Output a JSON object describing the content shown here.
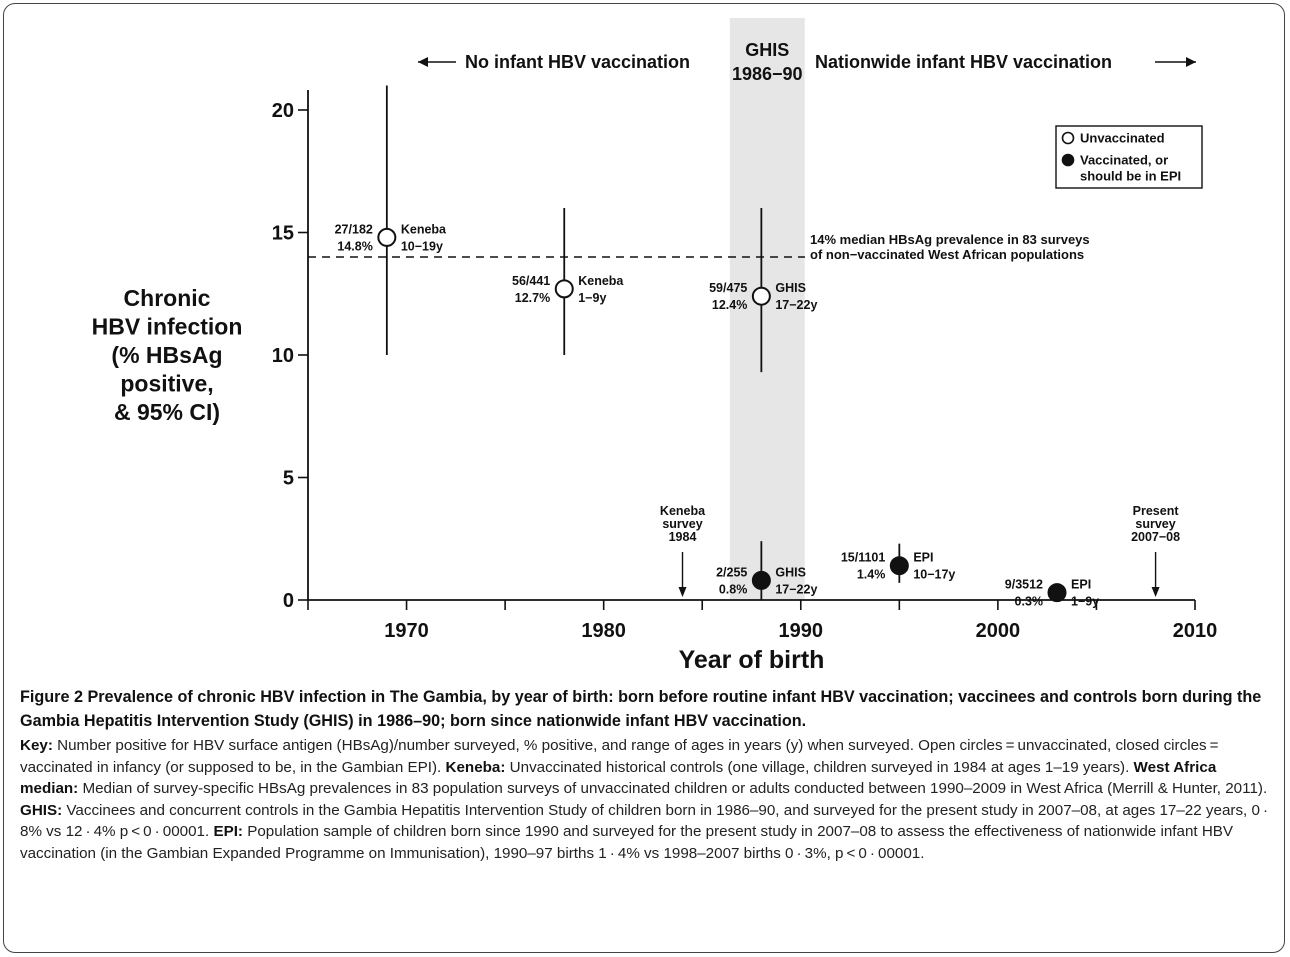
{
  "chart_data": {
    "type": "scatter",
    "xlabel": "Year of birth",
    "ylabel_lines": [
      "Chronic",
      "HBV infection",
      "(% HBsAg",
      "positive,",
      "& 95% CI)"
    ],
    "xlim": [
      1965,
      2010
    ],
    "ylim": [
      0,
      21
    ],
    "xticks": [
      1970,
      1980,
      1990,
      2000,
      2010
    ],
    "yticks": [
      0,
      5,
      10,
      15,
      20
    ],
    "shaded_region": {
      "x": [
        1986.4,
        1990.2
      ],
      "label_lines": [
        "GHIS",
        "1986−90"
      ]
    },
    "period_labels": {
      "left": "No infant HBV vaccination",
      "right": "Nationwide infant HBV vaccination"
    },
    "reference_line": {
      "y": 14,
      "label_lines": [
        "14% median HBsAg prevalence in 83 surveys",
        "of non−vaccinated West African populations"
      ]
    },
    "legend": {
      "position": "top-right",
      "unvaccinated": "Unvaccinated",
      "vaccinated_lines": [
        "Vaccinated, or",
        "should be in EPI"
      ]
    },
    "points": [
      {
        "x": 1969,
        "y": 14.8,
        "ci": [
          10,
          21
        ],
        "filled": false,
        "count": "27/182",
        "pct": "14.8%",
        "study": "Keneba",
        "ages": "10−19y"
      },
      {
        "x": 1978,
        "y": 12.7,
        "ci": [
          10,
          16
        ],
        "filled": false,
        "count": "56/441",
        "pct": "12.7%",
        "study": "Keneba",
        "ages": "1−9y"
      },
      {
        "x": 1988,
        "y": 12.4,
        "ci": [
          9.3,
          16
        ],
        "filled": false,
        "count": "59/475",
        "pct": "12.4%",
        "study": "GHIS",
        "ages": "17−22y"
      },
      {
        "x": 1988,
        "y": 0.8,
        "ci": [
          0,
          2.4
        ],
        "filled": true,
        "count": "2/255",
        "pct": "0.8%",
        "study": "GHIS",
        "ages": "17−22y"
      },
      {
        "x": 1995,
        "y": 1.4,
        "ci": [
          0.7,
          2.3
        ],
        "filled": true,
        "count": "15/1101",
        "pct": "1.4%",
        "study": "EPI",
        "ages": "10−17y"
      },
      {
        "x": 2003,
        "y": 0.3,
        "ci": [
          0.2,
          0.5
        ],
        "filled": true,
        "count": "9/3512",
        "pct": "0.3%",
        "study": "EPI",
        "ages": "1−9y"
      }
    ],
    "survey_markers": [
      {
        "x": 1984,
        "label_lines": [
          "Keneba",
          "survey",
          "1984"
        ]
      },
      {
        "x": 2008,
        "label_lines": [
          "Present",
          "survey",
          "2007−08"
        ]
      }
    ]
  },
  "caption": {
    "title": "Figure 2 Prevalence of chronic HBV infection in The Gambia, by year of birth: born before routine infant HBV vaccination; vaccinees and controls born during the Gambia Hepatitis Intervention Study (GHIS) in 1986–90; born since nationwide infant HBV vaccination.",
    "key_label": "Key:",
    "key_text": " Number positive for HBV surface antigen (HBsAg)/number surveyed, % positive, and range of ages in years (y) when surveyed. Open circles = unvaccinated, closed circles = vaccinated in infancy (or supposed to be, in the Gambian EPI).",
    "keneba_label": "Keneba:",
    "keneba_text": " Unvaccinated historical controls (one village, children surveyed in 1984 at ages 1–19 years).",
    "wa_label": "West Africa median:",
    "wa_text": " Median of survey-specific HBsAg prevalences in 83 population surveys of unvaccinated children or adults conducted between 1990–2009 in West Africa (Merrill & Hunter, 2011).",
    "ghis_label": "GHIS:",
    "ghis_text": " Vaccinees and concurrent controls in the Gambia Hepatitis Intervention Study of children born in 1986–90, and surveyed for the present study in 2007–08, at ages 17–22 years, 0 · 8% vs 12 · 4% p < 0 · 00001.",
    "epi_label": "EPI:",
    "epi_text": " Population sample of children born since 1990 and surveyed for the present study in 2007–08 to assess the effectiveness of nationwide infant HBV vaccination (in the Gambian Expanded Programme on Immunisation), 1990–97 births 1 · 4% vs 1998–2007 births 0 · 3%, p < 0 · 00001."
  }
}
